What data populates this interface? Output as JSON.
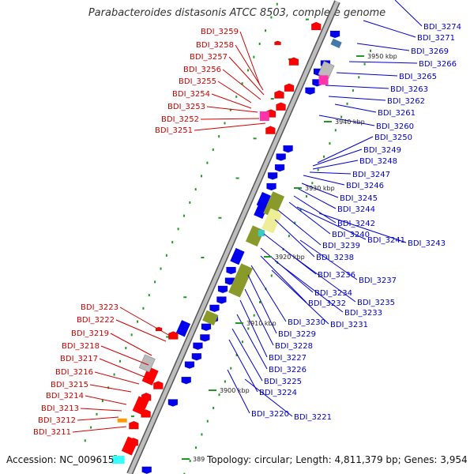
{
  "title": "Parabacteroides distasonis ATCC 8503, complete genome",
  "accession": "Accession: NC_009615",
  "summary": "Topology: circular; Length: 4,811,379 bp; Genes: 3,954",
  "colors": {
    "forward_label": "#d00000",
    "reverse_label": "#0000cc",
    "forward_gene": "#ff0000",
    "reverse_gene": "#0000ee",
    "other_gene_olive": "#8a9a2a",
    "pseudo_gene_grey": "#bbbbbb",
    "rna_magenta": "#ff33aa",
    "backbone": "#888888",
    "tick_green": "#229922"
  },
  "ticks": [
    {
      "label": "3950 kbp"
    },
    {
      "label": "3940 kbp"
    },
    {
      "label": "3930 kbp"
    },
    {
      "label": "3920 kbp"
    },
    {
      "label": "3910 kbp"
    },
    {
      "label": "3900 kbp"
    },
    {
      "label": "389"
    }
  ],
  "forward_genes": [
    {
      "label": "BDI_3259"
    },
    {
      "label": "BDI_3258"
    },
    {
      "label": "BDI_3257"
    },
    {
      "label": "BDI_3256"
    },
    {
      "label": "BDI_3255"
    },
    {
      "label": "BDI_3254"
    },
    {
      "label": "BDI_3253"
    },
    {
      "label": "BDI_3252"
    },
    {
      "label": "BDI_3251"
    },
    {
      "label": "BDI_3223"
    },
    {
      "label": "BDI_3222"
    },
    {
      "label": "BDI_3219"
    },
    {
      "label": "BDI_3218"
    },
    {
      "label": "BDI_3217"
    },
    {
      "label": "BDI_3216"
    },
    {
      "label": "BDI_3215"
    },
    {
      "label": "BDI_3214"
    },
    {
      "label": "BDI_3213"
    },
    {
      "label": "BDI_3212"
    },
    {
      "label": "BDI_3211"
    }
  ],
  "reverse_genes": [
    {
      "label": "BDI_3274"
    },
    {
      "label": "BDI_3271"
    },
    {
      "label": "BDI_3269"
    },
    {
      "label": "BDI_3266"
    },
    {
      "label": "BDI_3265"
    },
    {
      "label": "BDI_3263"
    },
    {
      "label": "BDI_3262"
    },
    {
      "label": "BDI_3261"
    },
    {
      "label": "BDI_3260"
    },
    {
      "label": "BDI_3250"
    },
    {
      "label": "BDI_3249"
    },
    {
      "label": "BDI_3248"
    },
    {
      "label": "BDI_3247"
    },
    {
      "label": "BDI_3246"
    },
    {
      "label": "BDI_3245"
    },
    {
      "label": "BDI_3244"
    },
    {
      "label": "BDI_3242"
    },
    {
      "label": "BDI_3240"
    },
    {
      "label": "BDI_3241"
    },
    {
      "label": "BDI_3243"
    },
    {
      "label": "BDI_3239"
    },
    {
      "label": "BDI_3238"
    },
    {
      "label": "BDI_3236"
    },
    {
      "label": "BDI_3237"
    },
    {
      "label": "BDI_3234"
    },
    {
      "label": "BDI_3232"
    },
    {
      "label": "BDI_3235"
    },
    {
      "label": "BDI_3233"
    },
    {
      "label": "BDI_3230"
    },
    {
      "label": "BDI_3231"
    },
    {
      "label": "BDI_3229"
    },
    {
      "label": "BDI_3228"
    },
    {
      "label": "BDI_3227"
    },
    {
      "label": "BDI_3226"
    },
    {
      "label": "BDI_3225"
    },
    {
      "label": "BDI_3224"
    },
    {
      "label": "BDI_3220"
    },
    {
      "label": "BDI_3221"
    }
  ]
}
